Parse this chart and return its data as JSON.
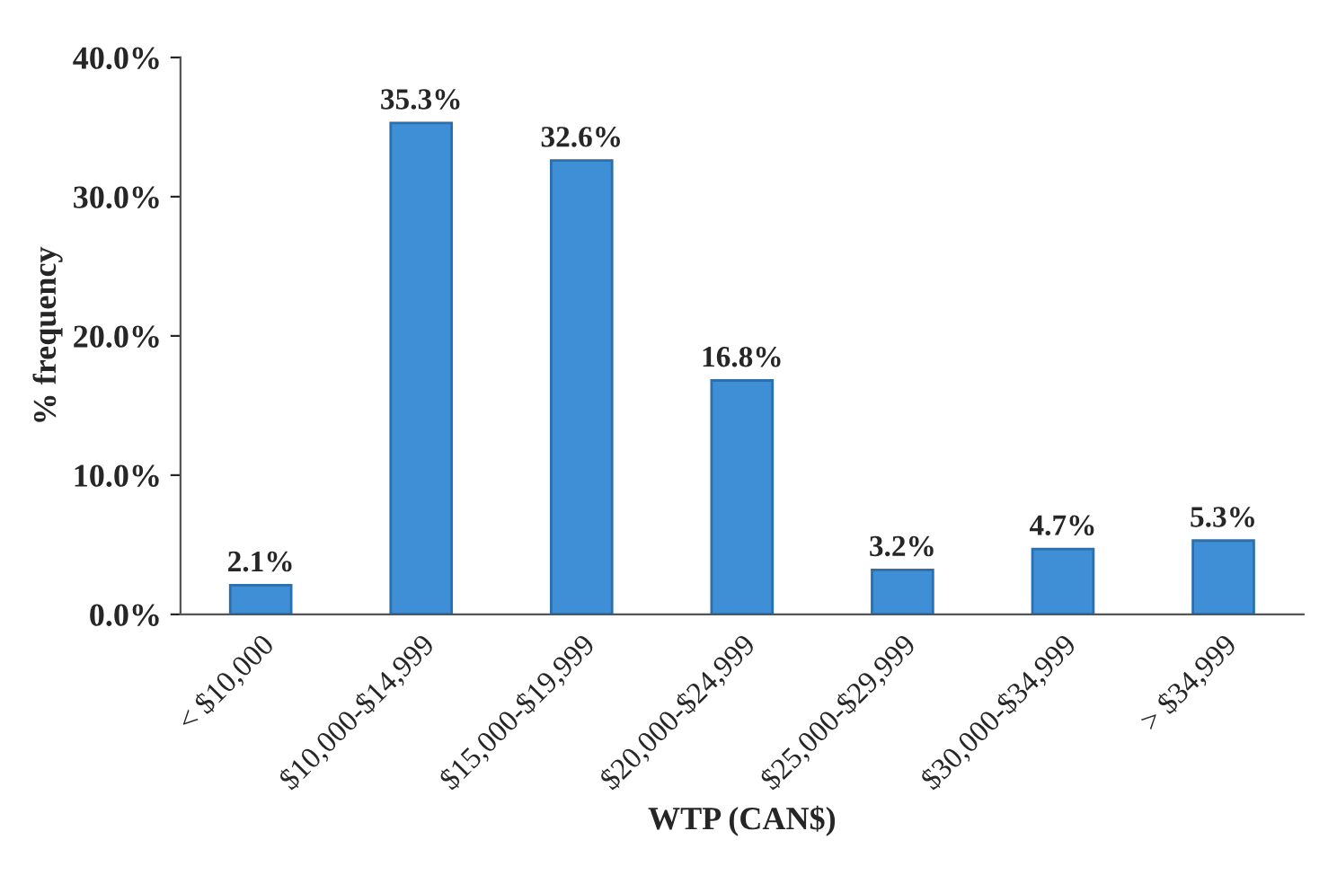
{
  "chart_data": {
    "type": "bar",
    "xlabel": "WTP (CAN$)",
    "ylabel": "% frequency",
    "categories": [
      "< $10,000",
      "$10,000-$14,999",
      "$15,000-$19,999",
      "$20,000-$24,999",
      "$25,000-$29,999",
      "$30,000-$34,999",
      "> $34,999"
    ],
    "values": [
      2.1,
      35.3,
      32.6,
      16.8,
      3.2,
      4.7,
      5.3
    ],
    "value_labels": [
      "2.1%",
      "35.3%",
      "32.6%",
      "16.8%",
      "3.2%",
      "4.7%",
      "5.3%"
    ],
    "color": "#3f8fd6",
    "ylim": [
      0,
      40
    ],
    "yticks": [
      {
        "value": 0,
        "label": "0.0%"
      },
      {
        "value": 10,
        "label": "10.0%"
      },
      {
        "value": 20,
        "label": "20.0%"
      },
      {
        "value": 30,
        "label": "30.0%"
      },
      {
        "value": 40,
        "label": "40.0%"
      }
    ],
    "grid": false
  }
}
